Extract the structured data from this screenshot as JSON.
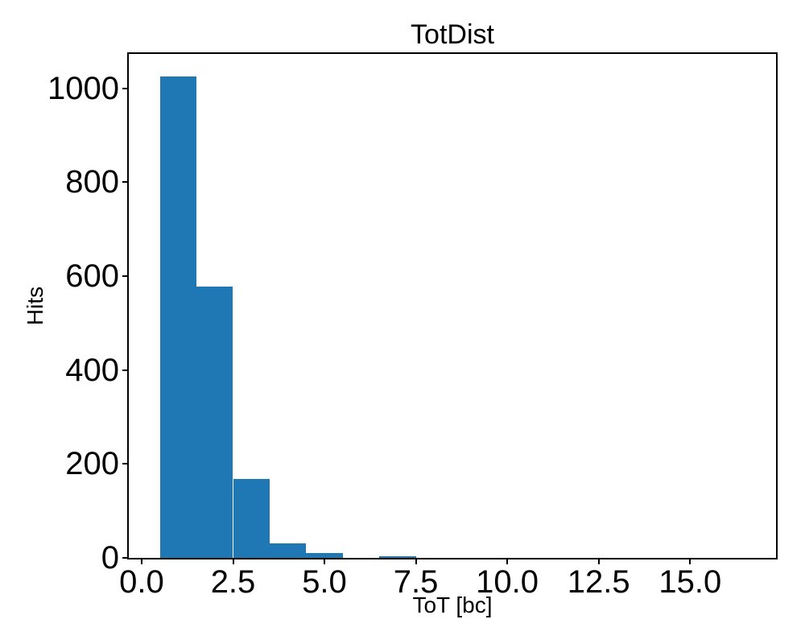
{
  "chart_data": {
    "type": "bar",
    "chart_kind": "histogram",
    "title": "TotDist",
    "xlabel": "ToT [bc]",
    "ylabel": "Hits",
    "bar_color": "#1f77b4",
    "text_color": "#000000",
    "spine_color": "#000000",
    "grid": false,
    "legend": null,
    "bin_edges": [
      0.5,
      1.5,
      2.5,
      3.5,
      4.5,
      5.5,
      6.5,
      7.5,
      8.5,
      9.5,
      10.5,
      11.5,
      12.5,
      13.5,
      14.5,
      15.5,
      16.5
    ],
    "counts": [
      1025,
      578,
      168,
      31,
      10,
      0,
      3,
      0,
      0,
      0,
      0,
      0,
      0,
      0,
      0,
      0
    ],
    "xlim": [
      -0.35,
      17.35
    ],
    "ylim": [
      0,
      1073
    ],
    "xtick_values": [
      0.0,
      2.5,
      5.0,
      7.5,
      10.0,
      12.5,
      15.0
    ],
    "xtick_labels": [
      "0.0",
      "2.5",
      "5.0",
      "7.5",
      "10.0",
      "12.5",
      "15.0"
    ],
    "ytick_values": [
      0,
      200,
      400,
      600,
      800,
      1000
    ],
    "ytick_labels": [
      "0",
      "200",
      "400",
      "600",
      "800",
      "1000"
    ]
  }
}
